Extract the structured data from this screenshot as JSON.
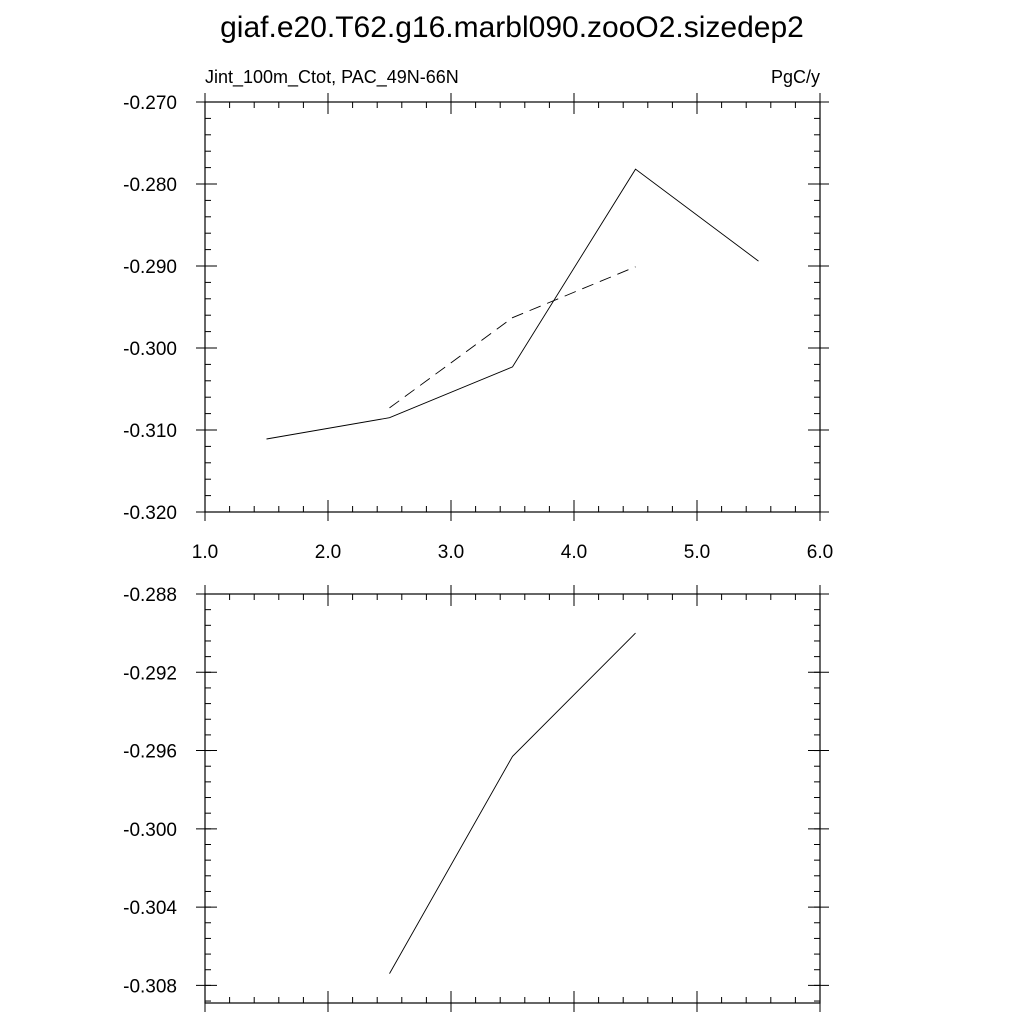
{
  "title": "giaf.e20.T62.g16.marbl090.zooO2.sizedep2",
  "chart_data": [
    {
      "type": "line",
      "left_string": "Jint_100m_Ctot, PAC_49N-66N",
      "right_string": "PgC/y",
      "xlim": [
        1.0,
        6.0
      ],
      "ylim": [
        -0.32,
        -0.27
      ],
      "x_ticks": [
        1.0,
        2.0,
        3.0,
        4.0,
        5.0,
        6.0
      ],
      "x_tick_labels": [
        "1.0",
        "2.0",
        "3.0",
        "4.0",
        "5.0",
        "6.0"
      ],
      "y_ticks": [
        -0.32,
        -0.31,
        -0.3,
        -0.29,
        -0.28,
        -0.27
      ],
      "y_tick_labels": [
        "-0.320",
        "-0.310",
        "-0.300",
        "-0.290",
        "-0.280",
        "-0.270"
      ],
      "grid": false,
      "series": [
        {
          "style": "solid",
          "x": [
            1.5,
            2.5,
            3.5,
            4.5,
            5.5
          ],
          "y": [
            -0.3111,
            -0.3085,
            -0.3023,
            -0.2782,
            -0.2894
          ]
        },
        {
          "style": "dashed",
          "x": [
            2.5,
            3.5,
            4.5
          ],
          "y": [
            -0.3073,
            -0.2963,
            -0.2901
          ]
        }
      ]
    },
    {
      "type": "line",
      "xlim": [
        1.0,
        6.0
      ],
      "ylim": [
        -0.3089,
        -0.288
      ],
      "x_ticks": [
        1.0,
        2.0,
        3.0,
        4.0,
        5.0,
        6.0
      ],
      "y_ticks": [
        -0.308,
        -0.304,
        -0.3,
        -0.296,
        -0.292,
        -0.288
      ],
      "y_tick_labels": [
        "-0.308",
        "-0.304",
        "-0.300",
        "-0.296",
        "-0.292",
        "-0.288"
      ],
      "grid": false,
      "series": [
        {
          "style": "solid",
          "x": [
            2.5,
            3.5,
            4.5
          ],
          "y": [
            -0.3074,
            -0.2963,
            -0.29
          ]
        }
      ]
    }
  ]
}
